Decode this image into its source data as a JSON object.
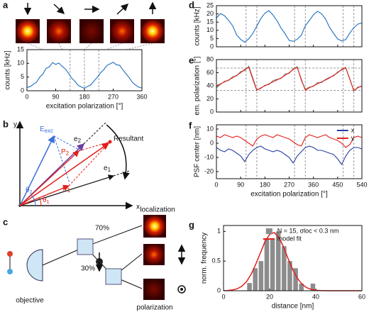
{
  "chart_data": [
    {
      "type": "line",
      "panel": "a",
      "xlabel": "excitation polarization [°]",
      "ylabel": "counts [kHz]",
      "xlim": [
        0,
        360
      ],
      "ylim": [
        0,
        15
      ],
      "xticks": [
        0,
        90,
        180,
        270,
        360
      ],
      "yticks": [
        0,
        5,
        10,
        15
      ],
      "guide_x": [
        135,
        180,
        225
      ],
      "x": [
        0,
        10,
        20,
        30,
        40,
        50,
        60,
        70,
        80,
        90,
        100,
        110,
        120,
        130,
        140,
        150,
        160,
        170,
        180,
        190,
        200,
        210,
        220,
        230,
        240,
        250,
        260,
        270,
        280,
        290,
        300,
        310,
        320,
        330,
        340,
        350,
        360
      ],
      "series": [
        {
          "color": "#1f6fbf",
          "values": [
            1.2,
            1.5,
            2.4,
            3.1,
            5.0,
            6.1,
            8.2,
            8.7,
            10.3,
            9.6,
            10.1,
            8.9,
            8.0,
            6.4,
            4.6,
            3.5,
            2.0,
            1.4,
            0.9,
            1.6,
            2.2,
            3.6,
            4.9,
            6.5,
            7.6,
            9.2,
            9.8,
            10.4,
            9.5,
            9.3,
            7.7,
            6.2,
            4.8,
            3.1,
            2.1,
            1.3,
            1.0
          ]
        }
      ]
    },
    {
      "type": "line",
      "panel": "d",
      "ylabel": "counts [kHz]",
      "xtick_labels": false,
      "xlim": [
        0,
        540
      ],
      "ylim": [
        0,
        25
      ],
      "xticks": [
        0,
        90,
        180,
        270,
        360,
        450,
        540
      ],
      "yticks": [
        0,
        5,
        10,
        15,
        20,
        25
      ],
      "guide_x": [
        110,
        150,
        290,
        330,
        470,
        510
      ],
      "x": [
        0,
        15,
        30,
        45,
        60,
        75,
        90,
        105,
        120,
        135,
        150,
        165,
        180,
        195,
        210,
        225,
        240,
        255,
        270,
        285,
        300,
        315,
        330,
        345,
        360,
        375,
        390,
        405,
        420,
        435,
        450,
        465,
        480,
        495,
        510,
        525,
        540
      ],
      "series": [
        {
          "color": "#1f6fbf",
          "values": [
            17.5,
            20.2,
            18.9,
            16.1,
            12.8,
            7.2,
            4.5,
            2.8,
            4.9,
            8.1,
            12.6,
            17.2,
            20.4,
            22.0,
            19.3,
            15.8,
            11.4,
            7.9,
            3.9,
            3.3,
            4.6,
            7.0,
            12.9,
            16.0,
            19.5,
            21.6,
            20.1,
            16.9,
            11.8,
            8.2,
            4.8,
            3.6,
            4.4,
            8.3,
            11.6,
            13.8,
            14.5
          ]
        }
      ]
    },
    {
      "type": "line",
      "panel": "e",
      "ylabel": "em. polarization [°]",
      "xtick_labels": false,
      "xlim": [
        0,
        540
      ],
      "ylim": [
        0,
        80
      ],
      "xticks": [
        0,
        90,
        180,
        270,
        360,
        450,
        540
      ],
      "yticks": [
        0,
        20,
        40,
        60,
        80
      ],
      "guide_x": [
        110,
        150,
        290,
        330,
        470,
        510
      ],
      "guide_y": [
        33,
        67
      ],
      "x": [
        0,
        15,
        30,
        45,
        60,
        75,
        90,
        105,
        120,
        135,
        150,
        165,
        180,
        195,
        210,
        225,
        240,
        255,
        270,
        285,
        300,
        315,
        330,
        345,
        360,
        375,
        390,
        405,
        420,
        435,
        450,
        465,
        480,
        495,
        510,
        525,
        540
      ],
      "series": [
        {
          "color": "#808080",
          "values": [
            37,
            42,
            47,
            48,
            54,
            55,
            62,
            63,
            70,
            52,
            34,
            36,
            41,
            42,
            48,
            50,
            51,
            58,
            59,
            66,
            69,
            48,
            35,
            38,
            39,
            45,
            45,
            50,
            53,
            55,
            61,
            64,
            67,
            51,
            32,
            38,
            39
          ]
        },
        {
          "color": "#e0201b",
          "values": [
            40,
            43,
            46,
            49,
            52,
            56,
            60,
            65,
            68,
            50,
            33,
            37,
            40,
            43,
            46,
            49,
            52,
            56,
            60,
            65,
            68,
            50,
            33,
            37,
            40,
            43,
            46,
            49,
            52,
            56,
            60,
            65,
            68,
            50,
            33,
            37,
            40
          ]
        }
      ]
    },
    {
      "type": "line",
      "panel": "f",
      "xlabel": "excitation polarization [°]",
      "ylabel": "PSF center [nm]",
      "legend": "upper right",
      "xlim": [
        0,
        540
      ],
      "ylim": [
        -25,
        13
      ],
      "xticks": [
        0,
        90,
        180,
        270,
        360,
        450,
        540
      ],
      "yticks": [
        -20,
        -10,
        0,
        10
      ],
      "guide_x": [
        110,
        150,
        290,
        330,
        470,
        510
      ],
      "x": [
        0,
        15,
        30,
        45,
        60,
        75,
        90,
        105,
        120,
        135,
        150,
        165,
        180,
        195,
        210,
        225,
        240,
        255,
        270,
        285,
        300,
        315,
        330,
        345,
        360,
        375,
        390,
        405,
        420,
        435,
        450,
        465,
        480,
        495,
        510,
        525,
        540
      ],
      "series": [
        {
          "name": "x",
          "color": "#2b3fa0",
          "values": [
            -3,
            -5,
            -6,
            -4,
            -5,
            -7,
            -9,
            -13,
            -8,
            -5,
            -3,
            -2,
            -4,
            -5,
            -6,
            -5,
            -6,
            -8,
            -10,
            -14,
            -9,
            -6,
            -3,
            -2,
            -3,
            -5,
            -5,
            -6,
            -7,
            -8,
            -11,
            -15,
            -9,
            -5,
            -3,
            -3,
            -4
          ]
        },
        {
          "name": "y",
          "color": "#e0201b",
          "values": [
            5,
            4,
            6,
            5,
            4,
            5,
            4,
            2,
            0,
            -2,
            3,
            5,
            6,
            5,
            4,
            6,
            5,
            4,
            3,
            1,
            -1,
            -2,
            4,
            6,
            5,
            4,
            5,
            6,
            4,
            3,
            2,
            0,
            -3,
            -1,
            4,
            5,
            4
          ]
        }
      ]
    },
    {
      "type": "histogram",
      "panel": "g",
      "xlabel": "distance [nm]",
      "ylabel": "norm. frequency",
      "legend": "upper right",
      "xlim": [
        0,
        60
      ],
      "ylim": [
        0,
        1.1
      ],
      "xticks": [
        0,
        20,
        40,
        60
      ],
      "yticks": [
        0,
        0.5,
        1
      ],
      "name": "N = 15, σloc < 0.3 nm",
      "color": "#8c8c8c",
      "bins": [
        10,
        12.5,
        15,
        17.5,
        20,
        22.5,
        25,
        27.5,
        30,
        32.5,
        35,
        37.5,
        40
      ],
      "values": [
        0.13,
        0.38,
        0.5,
        0.88,
        0.88,
        1.0,
        0.75,
        0.5,
        0.38,
        0.12,
        0,
        0.12
      ],
      "fit": {
        "name": "model fit",
        "color": "#e0201b",
        "x": [
          0,
          2,
          4,
          6,
          8,
          10,
          12,
          14,
          16,
          18,
          20,
          22,
          24,
          26,
          28,
          30,
          32,
          34,
          36,
          38,
          40,
          42,
          44,
          46,
          48,
          50,
          52,
          54,
          56,
          58,
          60
        ],
        "values": [
          0.002,
          0.005,
          0.014,
          0.035,
          0.078,
          0.156,
          0.28,
          0.45,
          0.64,
          0.83,
          0.95,
          0.98,
          0.9,
          0.74,
          0.54,
          0.36,
          0.21,
          0.112,
          0.053,
          0.022,
          0.008,
          0.003,
          0.001,
          0,
          0,
          0,
          0,
          0,
          0,
          0,
          0
        ]
      }
    }
  ],
  "diagram_b": {
    "panel": "b",
    "axis_x": "x",
    "axis_y": "y",
    "e_exc": {
      "main": "E",
      "sub": "exc"
    },
    "e2": {
      "main": "e",
      "sub": "2"
    },
    "p2": {
      "main": "P",
      "sub": "2"
    },
    "resultant": "Resultant",
    "e1": {
      "main": "e",
      "sub": "1"
    },
    "p1": {
      "main": "P",
      "sub": "1"
    },
    "theta2": {
      "main": "θ",
      "sub": "2"
    },
    "theta1": {
      "main": "θ",
      "sub": "1"
    }
  },
  "diagram_c": {
    "panel": "c",
    "objective": "objective",
    "split_70": "70%",
    "split_30": "30%",
    "localization": "localization",
    "polarization": "polarization"
  }
}
